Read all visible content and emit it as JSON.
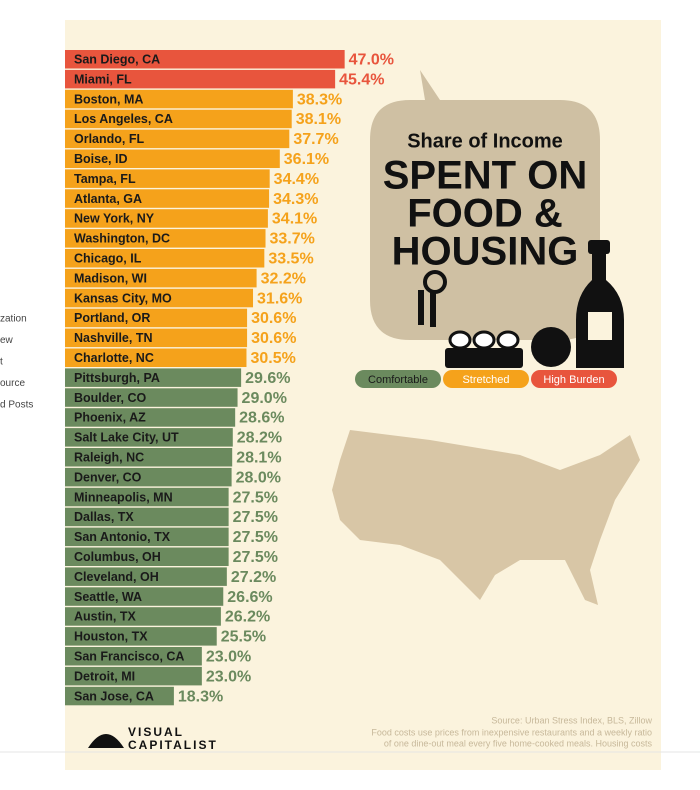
{
  "sidebar": [
    "zation",
    "ew",
    "t",
    "ource",
    "d Posts"
  ],
  "chart_data": {
    "type": "bar",
    "orientation": "horizontal",
    "subtitle": "Share of Income",
    "title_lines": [
      "SPENT ON",
      "FOOD &",
      "HOUSING"
    ],
    "categories": [
      "San Diego, CA",
      "Miami, FL",
      "Boston, MA",
      "Los Angeles, CA",
      "Orlando, FL",
      "Boise, ID",
      "Tampa, FL",
      "Atlanta, GA",
      "New York, NY",
      "Washington, DC",
      "Chicago, IL",
      "Madison, WI",
      "Kansas City, MO",
      "Portland, OR",
      "Nashville, TN",
      "Charlotte, NC",
      "Pittsburgh, PA",
      "Boulder, CO",
      "Phoenix, AZ",
      "Salt Lake City, UT",
      "Raleigh, NC",
      "Denver, CO",
      "Minneapolis, MN",
      "Dallas, TX",
      "San Antonio, TX",
      "Columbus, OH",
      "Cleveland, OH",
      "Seattle, WA",
      "Austin, TX",
      "Houston, TX",
      "San Francisco, CA",
      "Detroit, MI",
      "San Jose, CA"
    ],
    "values": [
      47.0,
      45.4,
      38.3,
      38.1,
      37.7,
      36.1,
      34.4,
      34.3,
      34.1,
      33.7,
      33.5,
      32.2,
      31.6,
      30.6,
      30.6,
      30.5,
      29.6,
      29.0,
      28.6,
      28.2,
      28.1,
      28.0,
      27.5,
      27.5,
      27.5,
      27.5,
      27.2,
      26.6,
      26.2,
      25.5,
      23.0,
      23.0,
      18.3
    ],
    "value_labels": [
      "47.0%",
      "45.4%",
      "38.3%",
      "38.1%",
      "37.7%",
      "36.1%",
      "34.4%",
      "34.3%",
      "34.1%",
      "33.7%",
      "33.5%",
      "32.2%",
      "31.6%",
      "30.6%",
      "30.6%",
      "30.5%",
      "29.6%",
      "29.0%",
      "28.6%",
      "28.2%",
      "28.1%",
      "28.0%",
      "27.5%",
      "27.5%",
      "27.5%",
      "27.5%",
      "27.2%",
      "26.6%",
      "26.2%",
      "25.5%",
      "23.0%",
      "23.0%",
      "18.3%"
    ],
    "colors": [
      "#e8553d",
      "#e8553d",
      "#f5a21b",
      "#f5a21b",
      "#f5a21b",
      "#f5a21b",
      "#f5a21b",
      "#f5a21b",
      "#f5a21b",
      "#f5a21b",
      "#f5a21b",
      "#f5a21b",
      "#f5a21b",
      "#f5a21b",
      "#f5a21b",
      "#f5a21b",
      "#6b8a5e",
      "#6b8a5e",
      "#6b8a5e",
      "#6b8a5e",
      "#6b8a5e",
      "#6b8a5e",
      "#6b8a5e",
      "#6b8a5e",
      "#6b8a5e",
      "#6b8a5e",
      "#6b8a5e",
      "#6b8a5e",
      "#6b8a5e",
      "#6b8a5e",
      "#6b8a5e",
      "#6b8a5e",
      "#6b8a5e"
    ],
    "legend": [
      {
        "name": "Comfortable",
        "color": "#6b8a5e"
      },
      {
        "name": "Stretched",
        "color": "#f5a21b"
      },
      {
        "name": "High Burden",
        "color": "#e8553d"
      }
    ],
    "source": "Source: Urban Stress Index, BLS, Zillow",
    "note_lines": [
      "Food costs use prices from inexpensive restaurants and a weekly ratio",
      "of one dine-out meal every five home-cooked meals. Housing costs"
    ],
    "brand_lines": [
      "VISUAL",
      "CAPITALIST"
    ]
  }
}
